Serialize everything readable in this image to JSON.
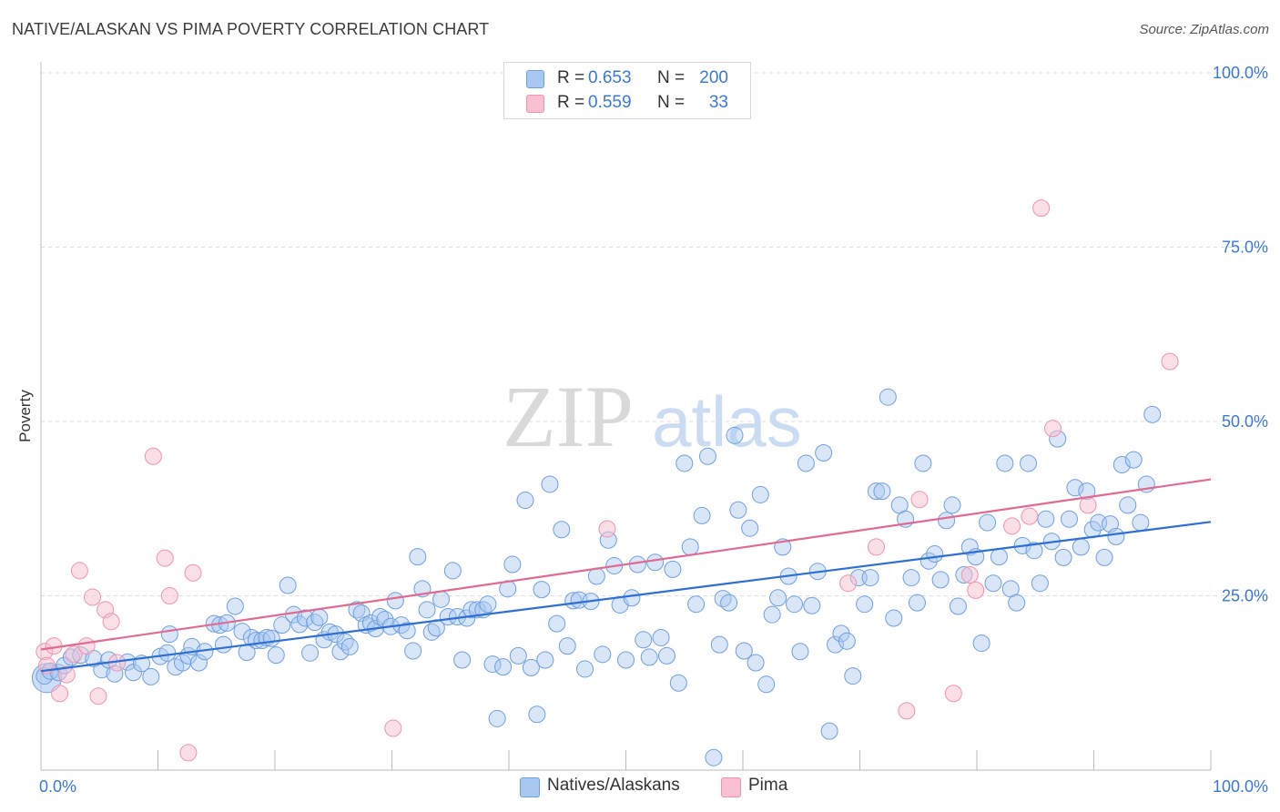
{
  "header": {
    "title": "NATIVE/ALASKAN VS PIMA POVERTY CORRELATION CHART",
    "source": "Source: ZipAtlas.com"
  },
  "legend": {
    "rows": [
      {
        "r_label": "R =",
        "r_value": "0.653",
        "n_label": "N =",
        "n_value": "200"
      },
      {
        "r_label": "R =",
        "r_value": "0.559",
        "n_label": "N =",
        "n_value": "33"
      }
    ]
  },
  "bottom_legend": {
    "items": [
      {
        "label": "Natives/Alaskans"
      },
      {
        "label": "Pima"
      }
    ]
  },
  "watermark": {
    "zip": "ZIP",
    "atlas": "atlas"
  },
  "colors": {
    "natives_fill": "#a9c8f0",
    "natives_stroke": "#6e9fe0",
    "natives_line": "#2e6fd6",
    "pima_fill": "#f8c0d0",
    "pima_stroke": "#ee93b0",
    "pima_line": "#e06a92",
    "tick_label": "#3a78d8",
    "grid": "#dddddd"
  },
  "chart_data": {
    "type": "scatter",
    "title": "NATIVE/ALASKAN VS PIMA POVERTY CORRELATION CHART",
    "xlabel": "",
    "ylabel": "Poverty",
    "xlim": [
      0,
      100
    ],
    "ylim": [
      0,
      100
    ],
    "x_tick_labels": [
      "0.0%",
      "100.0%"
    ],
    "y_tick_labels": [
      "25.0%",
      "50.0%",
      "75.0%",
      "100.0%"
    ],
    "y_ticks": [
      25,
      50,
      75,
      100
    ],
    "grid": true,
    "legend_position": "top-center",
    "series": [
      {
        "name": "Natives/Alaskans",
        "r": 0.653,
        "n": 200,
        "trend": {
          "x": [
            0,
            100
          ],
          "y": [
            14.2,
            35.6
          ]
        },
        "points": [
          [
            0.3,
            13.5
          ],
          [
            0.8,
            14.2
          ],
          [
            1.5,
            14.0
          ],
          [
            2.0,
            15.0
          ],
          [
            2.6,
            16.2
          ],
          [
            3.4,
            16.5
          ],
          [
            4.5,
            16.0
          ],
          [
            5.2,
            14.4
          ],
          [
            5.8,
            15.8
          ],
          [
            6.3,
            13.8
          ],
          [
            7.4,
            15.5
          ],
          [
            7.9,
            14.0
          ],
          [
            8.6,
            15.3
          ],
          [
            9.4,
            13.4
          ],
          [
            10.2,
            16.3
          ],
          [
            10.8,
            16.8
          ],
          [
            11.0,
            19.5
          ],
          [
            11.5,
            14.8
          ],
          [
            12.1,
            15.4
          ],
          [
            12.6,
            16.4
          ],
          [
            12.9,
            17.7
          ],
          [
            13.5,
            15.4
          ],
          [
            14.0,
            17.0
          ],
          [
            14.8,
            21.0
          ],
          [
            15.3,
            20.8
          ],
          [
            15.6,
            18.0
          ],
          [
            15.9,
            21.1
          ],
          [
            16.6,
            23.5
          ],
          [
            17.2,
            19.9
          ],
          [
            17.6,
            16.9
          ],
          [
            18.0,
            19.0
          ],
          [
            18.4,
            18.6
          ],
          [
            18.9,
            18.6
          ],
          [
            19.3,
            19.0
          ],
          [
            19.7,
            18.9
          ],
          [
            20.1,
            16.5
          ],
          [
            20.6,
            20.8
          ],
          [
            21.1,
            26.5
          ],
          [
            21.6,
            22.3
          ],
          [
            22.1,
            20.9
          ],
          [
            22.6,
            21.8
          ],
          [
            23.0,
            16.8
          ],
          [
            23.4,
            21.2
          ],
          [
            23.8,
            21.9
          ],
          [
            24.2,
            18.7
          ],
          [
            24.7,
            19.8
          ],
          [
            25.2,
            19.5
          ],
          [
            25.6,
            17.0
          ],
          [
            26.0,
            18.4
          ],
          [
            26.4,
            17.7
          ],
          [
            27.0,
            23.0
          ],
          [
            27.4,
            22.5
          ],
          [
            27.8,
            20.8
          ],
          [
            28.2,
            21.1
          ],
          [
            28.6,
            20.3
          ],
          [
            29.0,
            22.0
          ],
          [
            29.4,
            21.6
          ],
          [
            29.9,
            20.6
          ],
          [
            30.3,
            24.3
          ],
          [
            30.8,
            20.8
          ],
          [
            31.3,
            20.0
          ],
          [
            31.8,
            17.1
          ],
          [
            32.2,
            30.6
          ],
          [
            32.6,
            26.0
          ],
          [
            33.0,
            23.0
          ],
          [
            33.4,
            19.8
          ],
          [
            33.8,
            20.4
          ],
          [
            34.2,
            24.5
          ],
          [
            34.8,
            22.0
          ],
          [
            35.2,
            28.6
          ],
          [
            35.6,
            22.0
          ],
          [
            36.0,
            15.8
          ],
          [
            36.4,
            21.8
          ],
          [
            36.8,
            23.0
          ],
          [
            37.3,
            23.0
          ],
          [
            37.8,
            23.0
          ],
          [
            38.2,
            23.8
          ],
          [
            38.6,
            15.2
          ],
          [
            39.0,
            7.4
          ],
          [
            39.5,
            14.8
          ],
          [
            39.9,
            26.0
          ],
          [
            40.3,
            29.5
          ],
          [
            40.8,
            16.4
          ],
          [
            41.4,
            38.7
          ],
          [
            41.9,
            14.7
          ],
          [
            42.4,
            8.0
          ],
          [
            42.8,
            25.9
          ],
          [
            43.1,
            15.8
          ],
          [
            43.5,
            41.0
          ],
          [
            44.1,
            21.0
          ],
          [
            44.5,
            34.5
          ],
          [
            45.0,
            17.8
          ],
          [
            45.5,
            24.3
          ],
          [
            46.0,
            24.4
          ],
          [
            46.5,
            14.5
          ],
          [
            47.0,
            24.2
          ],
          [
            47.5,
            27.8
          ],
          [
            48.0,
            16.6
          ],
          [
            48.5,
            33.0
          ],
          [
            49.0,
            29.3
          ],
          [
            49.5,
            23.7
          ],
          [
            50.0,
            15.8
          ],
          [
            50.5,
            24.7
          ],
          [
            51.0,
            29.5
          ],
          [
            51.5,
            18.7
          ],
          [
            52.0,
            16.2
          ],
          [
            52.5,
            29.8
          ],
          [
            53.0,
            19.0
          ],
          [
            53.5,
            16.4
          ],
          [
            54.0,
            28.8
          ],
          [
            54.5,
            12.5
          ],
          [
            55.0,
            44.0
          ],
          [
            55.5,
            32.0
          ],
          [
            56.0,
            23.8
          ],
          [
            56.5,
            36.5
          ],
          [
            57.0,
            45.0
          ],
          [
            57.5,
            1.8
          ],
          [
            58.0,
            18.0
          ],
          [
            58.3,
            24.6
          ],
          [
            58.8,
            24.0
          ],
          [
            59.3,
            48.0
          ],
          [
            59.6,
            37.3
          ],
          [
            60.1,
            17.1
          ],
          [
            60.6,
            34.7
          ],
          [
            61.1,
            15.4
          ],
          [
            61.5,
            39.5
          ],
          [
            62.0,
            12.3
          ],
          [
            62.5,
            22.3
          ],
          [
            63.0,
            24.7
          ],
          [
            63.4,
            32.0
          ],
          [
            63.9,
            27.8
          ],
          [
            64.4,
            23.8
          ],
          [
            64.9,
            17.0
          ],
          [
            65.4,
            44.0
          ],
          [
            65.9,
            23.6
          ],
          [
            66.4,
            28.5
          ],
          [
            66.9,
            45.5
          ],
          [
            67.4,
            5.6
          ],
          [
            67.9,
            18.0
          ],
          [
            68.4,
            19.6
          ],
          [
            68.9,
            18.5
          ],
          [
            69.4,
            13.5
          ],
          [
            69.9,
            27.6
          ],
          [
            70.4,
            23.8
          ],
          [
            70.9,
            27.6
          ],
          [
            71.4,
            40.0
          ],
          [
            71.9,
            40.0
          ],
          [
            72.4,
            53.5
          ],
          [
            72.9,
            21.8
          ],
          [
            73.4,
            38.0
          ],
          [
            73.9,
            36.0
          ],
          [
            74.4,
            27.6
          ],
          [
            74.9,
            24.0
          ],
          [
            75.4,
            44.0
          ],
          [
            75.9,
            30.0
          ],
          [
            76.4,
            31.0
          ],
          [
            76.9,
            27.3
          ],
          [
            77.4,
            35.8
          ],
          [
            77.9,
            38.0
          ],
          [
            78.4,
            23.5
          ],
          [
            78.9,
            28.0
          ],
          [
            79.4,
            32.0
          ],
          [
            79.9,
            30.6
          ],
          [
            80.4,
            18.2
          ],
          [
            80.9,
            35.5
          ],
          [
            81.4,
            26.8
          ],
          [
            81.9,
            30.6
          ],
          [
            82.4,
            44.0
          ],
          [
            82.9,
            26.0
          ],
          [
            83.4,
            24.0
          ],
          [
            83.9,
            32.2
          ],
          [
            84.4,
            44.0
          ],
          [
            84.9,
            31.5
          ],
          [
            85.4,
            26.8
          ],
          [
            85.9,
            36.0
          ],
          [
            86.4,
            32.8
          ],
          [
            86.9,
            47.5
          ],
          [
            87.4,
            30.5
          ],
          [
            87.9,
            36.0
          ],
          [
            88.4,
            40.5
          ],
          [
            88.9,
            32.0
          ],
          [
            89.4,
            40.0
          ],
          [
            89.9,
            34.5
          ],
          [
            90.4,
            35.5
          ],
          [
            90.9,
            30.5
          ],
          [
            91.4,
            35.3
          ],
          [
            91.9,
            33.5
          ],
          [
            92.4,
            43.8
          ],
          [
            92.9,
            38.0
          ],
          [
            93.4,
            44.5
          ],
          [
            94.0,
            35.5
          ],
          [
            94.5,
            41.0
          ],
          [
            95.0,
            51.0
          ]
        ]
      },
      {
        "name": "Pima",
        "r": 0.559,
        "n": 33,
        "trend": {
          "x": [
            0,
            100
          ],
          "y": [
            17.3,
            41.7
          ]
        },
        "points": [
          [
            0.3,
            17.0
          ],
          [
            1.1,
            17.8
          ],
          [
            1.6,
            11.0
          ],
          [
            2.2,
            13.7
          ],
          [
            2.8,
            16.6
          ],
          [
            3.3,
            28.6
          ],
          [
            3.9,
            17.8
          ],
          [
            4.4,
            24.8
          ],
          [
            4.9,
            10.6
          ],
          [
            5.5,
            23.0
          ],
          [
            6.0,
            21.3
          ],
          [
            6.5,
            15.4
          ],
          [
            9.6,
            45.0
          ],
          [
            10.6,
            30.4
          ],
          [
            11.0,
            25.0
          ],
          [
            12.6,
            2.5
          ],
          [
            13.0,
            28.3
          ],
          [
            30.1,
            6.0
          ],
          [
            48.4,
            34.6
          ],
          [
            69.0,
            26.8
          ],
          [
            71.4,
            32.0
          ],
          [
            74.0,
            8.5
          ],
          [
            75.1,
            38.8
          ],
          [
            78.0,
            11.0
          ],
          [
            79.4,
            28.0
          ],
          [
            79.9,
            25.8
          ],
          [
            83.0,
            35.0
          ],
          [
            84.5,
            36.4
          ],
          [
            85.5,
            80.6
          ],
          [
            86.5,
            49.0
          ],
          [
            89.5,
            38.0
          ],
          [
            96.5,
            58.6
          ],
          [
            0.5,
            15.0
          ]
        ]
      }
    ]
  }
}
